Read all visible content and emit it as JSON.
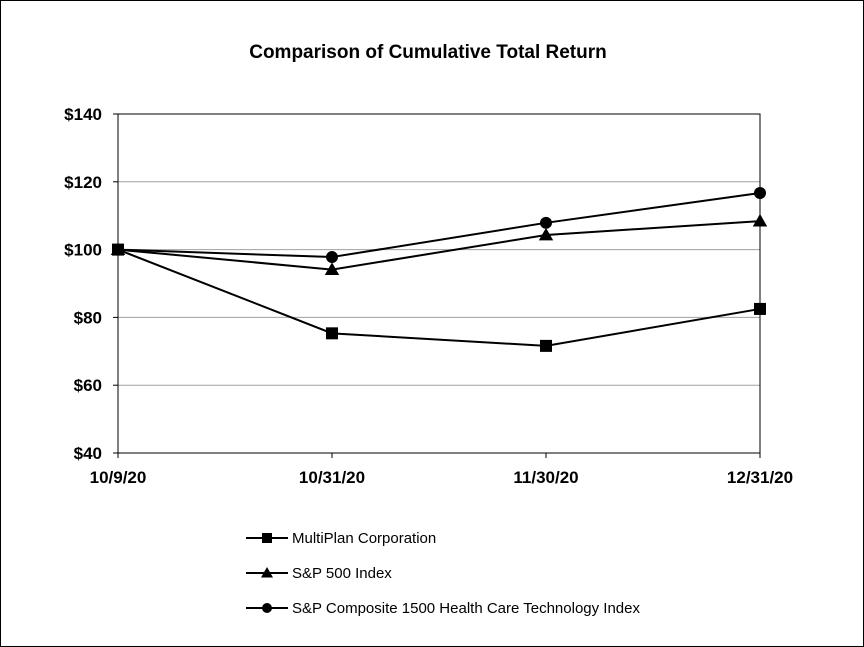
{
  "chart_data": {
    "type": "line",
    "title": "Comparison of Cumulative Total Return",
    "xlabel": "",
    "ylabel": "",
    "categories": [
      "10/9/20",
      "10/31/20",
      "11/30/20",
      "12/31/20"
    ],
    "ylim": [
      40,
      140
    ],
    "yticks": [
      40,
      60,
      80,
      100,
      120,
      140
    ],
    "ytick_labels": [
      "$40",
      "$60",
      "$80",
      "$100",
      "$120",
      "$140"
    ],
    "grid": true,
    "legend_position": "bottom",
    "series": [
      {
        "name": "MultiPlan Corporation",
        "marker": "square",
        "values": [
          100,
          75.3,
          71.6,
          82.5
        ]
      },
      {
        "name": "S&P 500 Index",
        "marker": "triangle",
        "values": [
          100,
          94.1,
          104.3,
          108.4
        ]
      },
      {
        "name": "S&P Composite 1500 Health Care Technology Index",
        "marker": "circle",
        "values": [
          100,
          97.8,
          107.9,
          116.7
        ]
      }
    ],
    "line_color": "#000000",
    "grid_color": "#a0a0a0"
  }
}
